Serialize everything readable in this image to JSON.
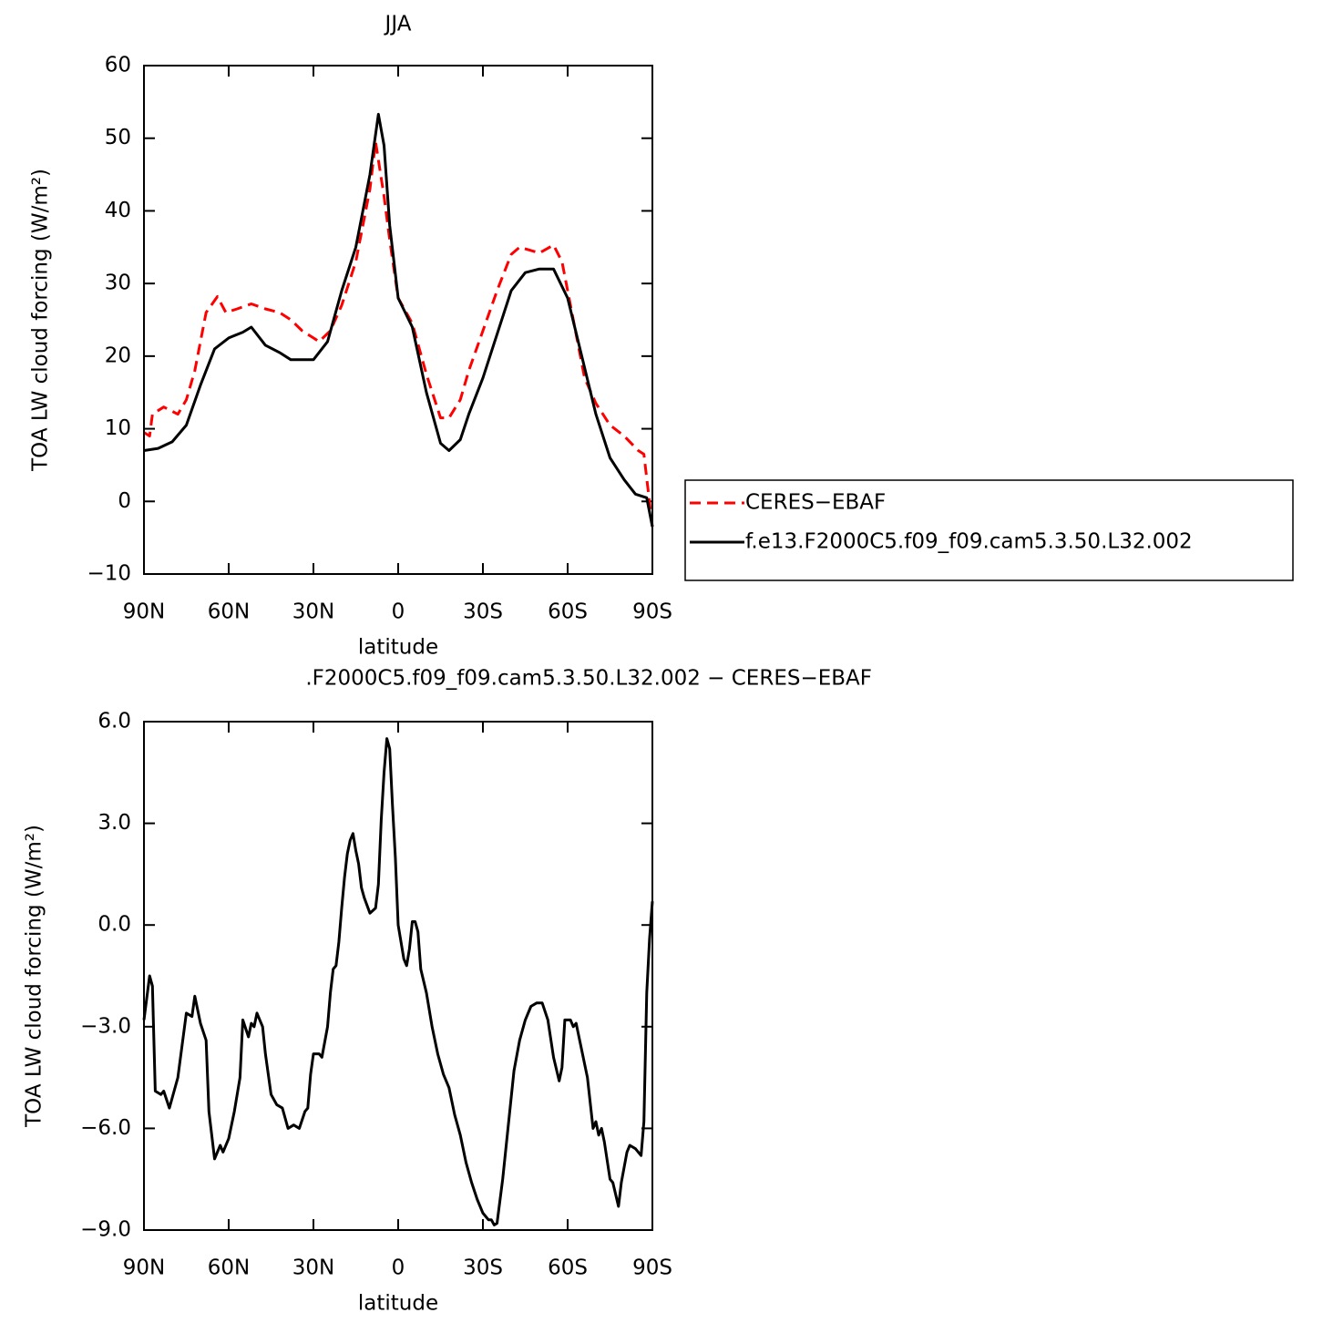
{
  "chart_data": [
    {
      "type": "line",
      "title": "JJA",
      "x_label": "latitude",
      "y_label": "TOA LW cloud forcing (W/m²)",
      "xlim": [
        90,
        -90
      ],
      "xticks": [
        {
          "value": 90,
          "label": "90N"
        },
        {
          "value": 60,
          "label": "60N"
        },
        {
          "value": 30,
          "label": "30N"
        },
        0,
        {
          "value": -30,
          "label": "30S"
        },
        {
          "value": -60,
          "label": "60S"
        },
        {
          "value": -90,
          "label": "90S"
        }
      ],
      "ylim": [
        -10,
        60
      ],
      "yticks": [
        {
          "value": -10,
          "label": "−10"
        },
        0,
        10,
        20,
        30,
        40,
        50,
        60
      ],
      "legend": "right",
      "series": [
        {
          "name": "CERES−EBAF",
          "color": "#ff0000",
          "style": "dashed",
          "x": [
            90,
            88,
            87,
            83,
            78,
            75,
            72,
            68,
            64,
            61,
            57,
            52,
            47,
            42,
            38,
            34,
            30,
            28,
            24,
            20,
            15,
            10,
            8,
            5,
            3,
            0,
            -5,
            -10,
            -15,
            -18,
            -22,
            -25,
            -30,
            -35,
            -40,
            -43,
            -50,
            -55,
            -58,
            -62,
            -66,
            -70,
            -75,
            -80,
            -85,
            -87,
            -90
          ],
          "values": [
            9.5,
            9,
            12,
            13,
            12,
            14,
            18,
            26,
            28.2,
            26,
            26.5,
            27.2,
            26.5,
            26,
            25,
            23.5,
            22.5,
            22,
            23.5,
            27,
            33,
            43,
            49.5,
            42,
            36,
            28,
            24.5,
            17.5,
            11.5,
            11.5,
            14,
            18,
            23.5,
            29,
            34,
            35,
            34.2,
            35.3,
            33,
            25,
            17,
            13.5,
            10.5,
            9,
            7,
            6.5,
            -3.5
          ]
        },
        {
          "name": "f.e13.F2000C5.f09_f09.cam5.3.50.L32.002",
          "color": "#000000",
          "style": "solid",
          "x": [
            90,
            85,
            80,
            75,
            70,
            65,
            60,
            55,
            52,
            47,
            42,
            38,
            35,
            30,
            25,
            20,
            15,
            10,
            7,
            5,
            3,
            0,
            -5,
            -10,
            -15,
            -18,
            -22,
            -25,
            -30,
            -35,
            -40,
            -45,
            -50,
            -55,
            -60,
            -65,
            -70,
            -75,
            -80,
            -84,
            -88,
            -90
          ],
          "values": [
            7,
            7.3,
            8.2,
            10.5,
            16,
            21,
            22.5,
            23.3,
            24,
            21.5,
            20.5,
            19.5,
            19.5,
            19.5,
            22,
            29,
            35,
            45,
            53.3,
            49,
            38,
            28,
            24,
            15,
            8,
            7,
            8.5,
            12,
            17,
            23,
            29,
            31.5,
            32,
            32,
            28,
            20,
            12,
            6,
            3,
            1,
            0.5,
            -3.5
          ]
        }
      ]
    },
    {
      "type": "line",
      "title": ".F2000C5.f09_f09.cam5.3.50.L32.002 − CERES−EBAF",
      "x_label": "latitude",
      "y_label": "TOA LW cloud forcing (W/m²)",
      "xlim": [
        90,
        -90
      ],
      "xticks": [
        {
          "value": 90,
          "label": "90N"
        },
        {
          "value": 60,
          "label": "60N"
        },
        {
          "value": 30,
          "label": "30N"
        },
        0,
        {
          "value": -30,
          "label": "30S"
        },
        {
          "value": -60,
          "label": "60S"
        },
        {
          "value": -90,
          "label": "90S"
        }
      ],
      "ylim": [
        -9,
        6
      ],
      "yticks": [
        {
          "value": -9,
          "label": "−9.0"
        },
        {
          "value": -6,
          "label": "−6.0"
        },
        {
          "value": -3,
          "label": "−3.0"
        },
        {
          "value": 0,
          "label": "0.0"
        },
        {
          "value": 3,
          "label": "3.0"
        },
        {
          "value": 6,
          "label": "6.0"
        }
      ],
      "color": "#000000",
      "x": [
        90,
        88,
        87,
        86,
        84,
        83,
        81,
        78,
        75,
        73,
        72,
        70,
        68,
        67,
        65,
        63,
        62,
        60,
        58,
        56,
        55,
        53,
        52,
        51,
        50,
        48,
        47,
        45,
        43,
        41,
        39,
        37,
        35,
        33,
        32,
        31,
        30,
        28,
        27,
        25,
        24,
        23,
        22,
        21,
        20,
        19,
        18,
        17,
        16,
        15,
        14,
        13,
        12,
        10,
        8,
        7,
        6,
        5,
        4,
        3,
        2,
        1,
        0,
        -1,
        -2,
        -3,
        -4,
        -5,
        -6,
        -7,
        -8,
        -10,
        -12,
        -14,
        -16,
        -18,
        -20,
        -22,
        -24,
        -26,
        -28,
        -30,
        -32,
        -33,
        -34,
        -35,
        -37,
        -39,
        -41,
        -43,
        -45,
        -47,
        -49,
        -51,
        -53,
        -55,
        -57,
        -58,
        -59,
        -61,
        -62,
        -63,
        -65,
        -67,
        -69,
        -70,
        -71,
        -72,
        -73,
        -75,
        -76,
        -78,
        -79,
        -81,
        -82,
        -84,
        -86,
        -87,
        -88,
        -89,
        -90
      ],
      "values": [
        -2.8,
        -1.5,
        -1.8,
        -4.9,
        -5.0,
        -4.9,
        -5.4,
        -4.5,
        -2.6,
        -2.7,
        -2.1,
        -2.9,
        -3.4,
        -5.5,
        -6.9,
        -6.5,
        -6.7,
        -6.3,
        -5.5,
        -4.5,
        -2.8,
        -3.3,
        -2.9,
        -3.0,
        -2.6,
        -3.0,
        -3.8,
        -5.0,
        -5.3,
        -5.4,
        -6.0,
        -5.9,
        -6.0,
        -5.5,
        -5.4,
        -4.4,
        -3.8,
        -3.8,
        -3.9,
        -3.0,
        -2.0,
        -1.3,
        -1.2,
        -0.5,
        0.5,
        1.4,
        2.1,
        2.5,
        2.7,
        2.2,
        1.8,
        1.1,
        0.8,
        0.35,
        0.5,
        1.2,
        3.1,
        4.5,
        5.5,
        5.2,
        3.5,
        2.0,
        0.0,
        -0.5,
        -1.0,
        -1.2,
        -0.7,
        0.1,
        0.1,
        -0.2,
        -1.3,
        -2.0,
        -3.0,
        -3.8,
        -4.4,
        -4.8,
        -5.6,
        -6.2,
        -7.0,
        -7.6,
        -8.1,
        -8.5,
        -8.7,
        -8.7,
        -8.85,
        -8.8,
        -7.5,
        -5.9,
        -4.3,
        -3.4,
        -2.8,
        -2.4,
        -2.3,
        -2.3,
        -2.8,
        -3.9,
        -4.6,
        -4.2,
        -2.8,
        -2.8,
        -3.0,
        -2.9,
        -3.7,
        -4.5,
        -6.0,
        -5.8,
        -6.2,
        -6.0,
        -6.4,
        -7.5,
        -7.6,
        -8.3,
        -7.6,
        -6.7,
        -6.5,
        -6.6,
        -6.8,
        -5.8,
        -2.0,
        -0.4,
        0.7
      ]
    }
  ]
}
